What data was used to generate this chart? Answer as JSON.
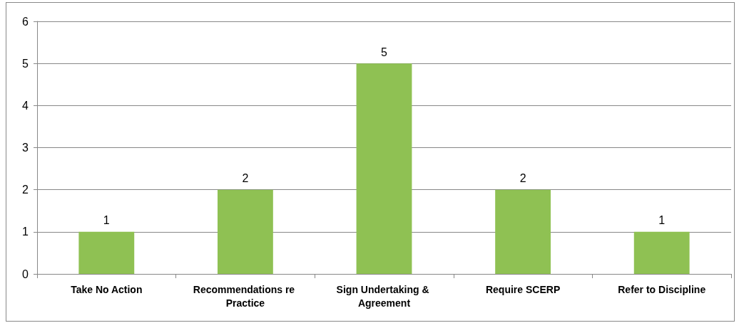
{
  "chart_data": {
    "type": "bar",
    "categories": [
      "Take No Action",
      "Recommendations re Practice",
      "Sign Undertaking & Agreement",
      "Require SCERP",
      "Refer to Discipline"
    ],
    "values": [
      1,
      2,
      5,
      2,
      1
    ],
    "color": "#8fc153",
    "ylim": [
      0,
      6
    ],
    "yticks": [
      0,
      1,
      2,
      3,
      4,
      5,
      6
    ],
    "grid": "y",
    "data_labels": true
  }
}
